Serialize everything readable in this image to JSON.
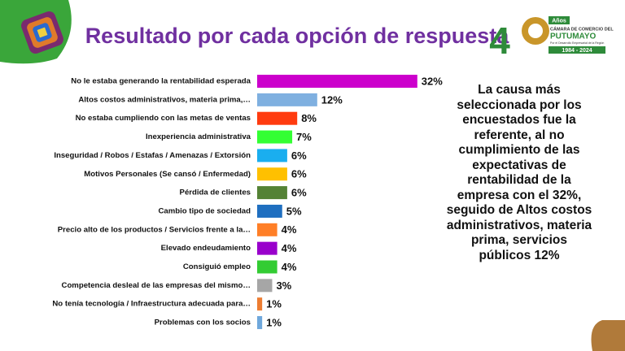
{
  "chart_data": {
    "type": "hbar",
    "title": "Resultado por cada opción de respuesta",
    "categories": [
      "No le estaba generando la rentabilidad esperada",
      "Altos costos administrativos, materia prima,…",
      "No estaba cumpliendo con las metas de ventas",
      "Inexperiencia administrativa",
      "Inseguridad / Robos / Estafas / Amenazas / Extorsión",
      "Motivos Personales (Se cansó / Enfermedad)",
      "Pérdida de clientes",
      "Cambio tipo de sociedad",
      "Precio alto de los productos / Servicios frente a la…",
      "Elevado endeudamiento",
      "Consiguió empleo",
      "Competencia desleal de las empresas del mismo…",
      "No tenía tecnología / Infraestructura adecuada para…",
      "Problemas con los socios"
    ],
    "values": [
      32,
      12,
      8,
      7,
      6,
      6,
      6,
      5,
      4,
      4,
      4,
      3,
      1,
      1
    ],
    "value_labels": [
      "32%",
      "12%",
      "8%",
      "7%",
      "6%",
      "6%",
      "6%",
      "5%",
      "4%",
      "4%",
      "4%",
      "3%",
      "1%",
      "1%"
    ],
    "colors": [
      "#cc00cc",
      "#7fb0e0",
      "#ff3b0f",
      "#33ff33",
      "#1aaeef",
      "#ffc000",
      "#548235",
      "#1f6fc0",
      "#ff7f27",
      "#9900cc",
      "#33cc33",
      "#a6a6a6",
      "#ed7d31",
      "#6fa8dc"
    ],
    "annotation": "La causa más seleccionada por los encuestados fue la referente, al no cumplimiento de las expectativas de rentabilidad de la empresa con el 32%,  seguido de Altos costos administrativos, materia prima, servicios públicos 12%"
  },
  "logo": {
    "number": "4",
    "years": "Años",
    "line1": "CÁMARA DE COMERCIO DEL",
    "line2": "PUTUMAYO",
    "line3": "Por el Desarrollo Empresarial de la Región",
    "period": "1984 - 2024"
  }
}
